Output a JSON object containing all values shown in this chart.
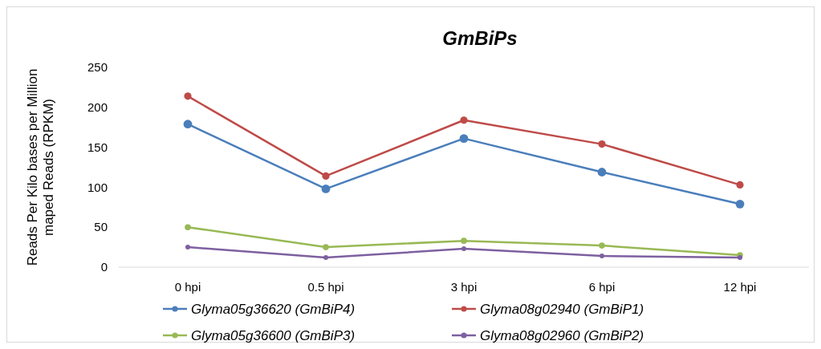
{
  "chart_data": {
    "type": "line",
    "title": "GmBiPs",
    "ylabel": "Reads Per Kilo bases per Million maped Reads (RPKM)",
    "categories": [
      "0 hpi",
      "0.5 hpi",
      "3 hpi",
      "6 hpi",
      "12 hpi"
    ],
    "ylim": [
      0,
      250
    ],
    "yticks": [
      0,
      50,
      100,
      150,
      200,
      250
    ],
    "grid": false,
    "legend": "bottom",
    "marker": "circle",
    "series": [
      {
        "name": "Glyma05g36620 (GmBiP4)",
        "color": "#4a7ebb",
        "values": [
          179,
          98,
          161,
          119,
          79
        ]
      },
      {
        "name": "Glyma08g02940 (GmBiP1)",
        "color": "#be4b48",
        "values": [
          214,
          114,
          184,
          154,
          103
        ]
      },
      {
        "name": "Glyma05g36600 (GmBiP3)",
        "color": "#98b954",
        "values": [
          50,
          25,
          33,
          27,
          15
        ]
      },
      {
        "name": "Glyma08g02960 (GmBiP2)",
        "color": "#7d60a0",
        "values": [
          25,
          12,
          23,
          14,
          12
        ]
      }
    ]
  }
}
